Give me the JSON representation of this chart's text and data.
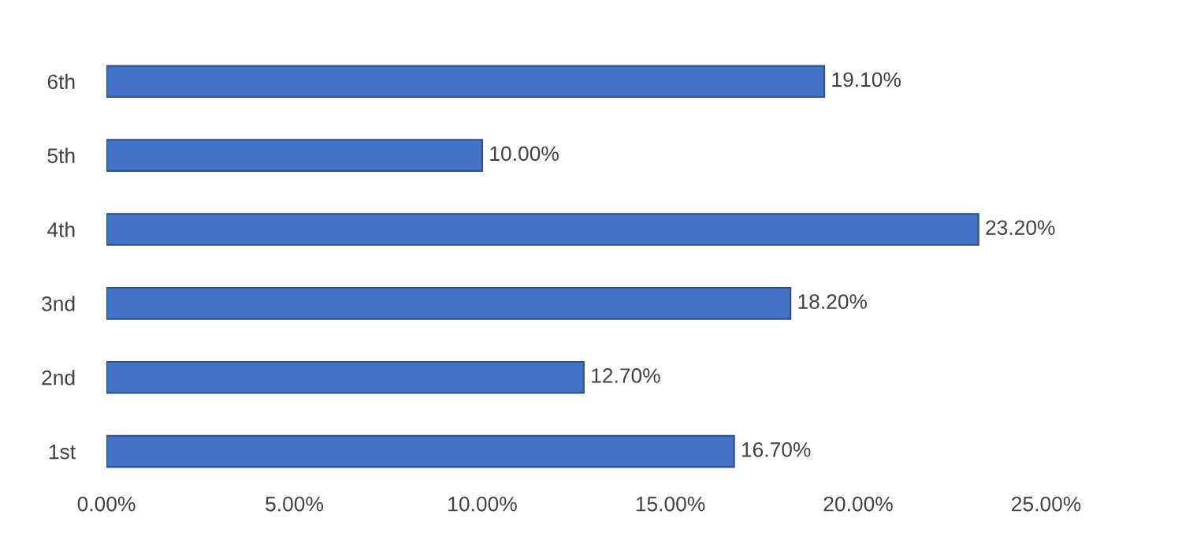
{
  "chart_data": {
    "type": "bar",
    "orientation": "horizontal",
    "categories": [
      "6th",
      "5th",
      "4th",
      "3nd",
      "2nd",
      "1st"
    ],
    "values": [
      19.1,
      10.0,
      23.2,
      18.2,
      12.7,
      16.7
    ],
    "value_labels": [
      "19.10%",
      "10.00%",
      "23.20%",
      "18.20%",
      "12.70%",
      "16.70%"
    ],
    "color": "#4472c4",
    "xlim": [
      0,
      25
    ],
    "xticks": [
      {
        "value": 0,
        "label": "0.00%"
      },
      {
        "value": 5,
        "label": "5.00%"
      },
      {
        "value": 10,
        "label": "10.00%"
      },
      {
        "value": 15,
        "label": "15.00%"
      },
      {
        "value": 20,
        "label": "20.00%"
      },
      {
        "value": 25,
        "label": "25.00%"
      }
    ],
    "grid": false
  }
}
